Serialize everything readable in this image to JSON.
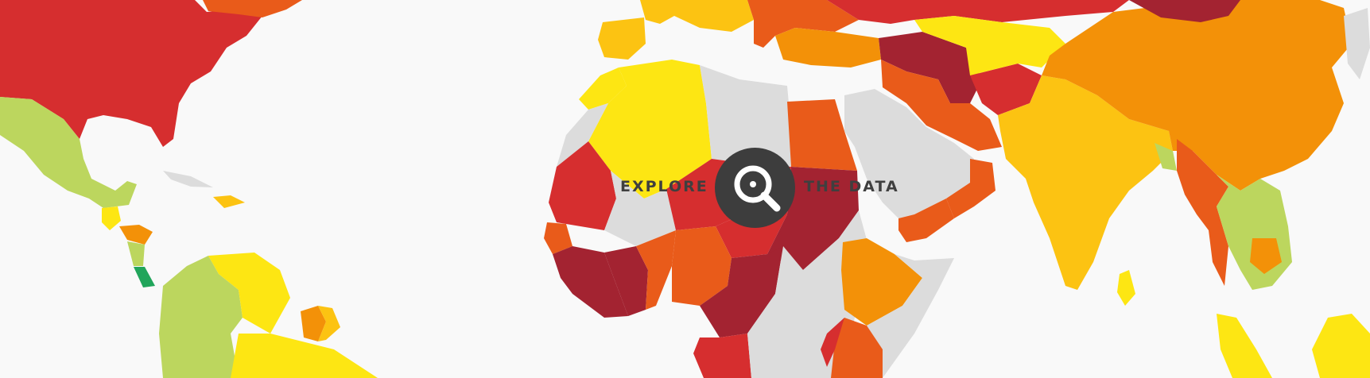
{
  "overlay": {
    "left_text": "EXPLORE",
    "right_text": "THE DATA",
    "button_icon": "magnifier-icon"
  },
  "colors": {
    "background": "#f9f9f9",
    "no_data": "#dcdcdc",
    "scale": [
      "#21a55b",
      "#bcd65e",
      "#fde613",
      "#fcc312",
      "#f39108",
      "#e95b1a",
      "#d62e2f",
      "#a32331"
    ],
    "button": "#3d3d3d",
    "label": "#3f3f3f"
  },
  "regions": [
    {
      "name": "north-america-north",
      "fill": "#d62e2f"
    },
    {
      "name": "canada-islands",
      "fill": "#e95b1a"
    },
    {
      "name": "mexico",
      "fill": "#bcd65e"
    },
    {
      "name": "guatemala",
      "fill": "#fde613"
    },
    {
      "name": "honduras",
      "fill": "#f39108"
    },
    {
      "name": "nicaragua",
      "fill": "#bcd65e"
    },
    {
      "name": "costa-rica",
      "fill": "#21a55b"
    },
    {
      "name": "cuba",
      "fill": "#dcdcdc"
    },
    {
      "name": "hispaniola",
      "fill": "#fcc312"
    },
    {
      "name": "colombia",
      "fill": "#bcd65e"
    },
    {
      "name": "venezuela",
      "fill": "#fde613"
    },
    {
      "name": "guyana",
      "fill": "#f39108"
    },
    {
      "name": "suriname",
      "fill": "#fcc312"
    },
    {
      "name": "south-america-lower",
      "fill": "#fde613"
    },
    {
      "name": "iberia",
      "fill": "#fcc312"
    },
    {
      "name": "europe-west",
      "fill": "#fcc312"
    },
    {
      "name": "europe-east",
      "fill": "#e95b1a"
    },
    {
      "name": "russia",
      "fill": "#d62e2f"
    },
    {
      "name": "morocco",
      "fill": "#fde613"
    },
    {
      "name": "algeria",
      "fill": "#fde613"
    },
    {
      "name": "libya",
      "fill": "#dcdcdc"
    },
    {
      "name": "egypt",
      "fill": "#e95b1a"
    },
    {
      "name": "western-sahara",
      "fill": "#dcdcdc"
    },
    {
      "name": "mauritania",
      "fill": "#d62e2f"
    },
    {
      "name": "mali",
      "fill": "#dcdcdc"
    },
    {
      "name": "niger",
      "fill": "#d62e2f"
    },
    {
      "name": "chad",
      "fill": "#d62e2f"
    },
    {
      "name": "sudan",
      "fill": "#a32331"
    },
    {
      "name": "senegal",
      "fill": "#e95b1a"
    },
    {
      "name": "guinea",
      "fill": "#a32331"
    },
    {
      "name": "ivory-coast",
      "fill": "#a32331"
    },
    {
      "name": "ghana",
      "fill": "#e95b1a"
    },
    {
      "name": "nigeria",
      "fill": "#e95b1a"
    },
    {
      "name": "cameroon",
      "fill": "#a32331"
    },
    {
      "name": "gabon-congo",
      "fill": "#d62e2f"
    },
    {
      "name": "central-africa",
      "fill": "#dcdcdc"
    },
    {
      "name": "ethiopia",
      "fill": "#f39108"
    },
    {
      "name": "horn-of-africa",
      "fill": "#dcdcdc"
    },
    {
      "name": "east-africa",
      "fill": "#e95b1a"
    },
    {
      "name": "east-africa-small",
      "fill": "#d62e2f"
    },
    {
      "name": "arabian-peninsula",
      "fill": "#dcdcdc"
    },
    {
      "name": "yemen",
      "fill": "#e95b1a"
    },
    {
      "name": "oman",
      "fill": "#e95b1a"
    },
    {
      "name": "turkey",
      "fill": "#f39108"
    },
    {
      "name": "caucasus",
      "fill": "#a32331"
    },
    {
      "name": "iran",
      "fill": "#e95b1a"
    },
    {
      "name": "afghanistan",
      "fill": "#d62e2f"
    },
    {
      "name": "central-asia",
      "fill": "#fde613"
    },
    {
      "name": "pakistan-india",
      "fill": "#fcc312"
    },
    {
      "name": "sri-lanka",
      "fill": "#fde613"
    },
    {
      "name": "china",
      "fill": "#f39108"
    },
    {
      "name": "mongolia",
      "fill": "#a32331"
    },
    {
      "name": "bangladesh",
      "fill": "#bcd65e"
    },
    {
      "name": "myanmar",
      "fill": "#e95b1a"
    },
    {
      "name": "indochina",
      "fill": "#bcd65e"
    },
    {
      "name": "cambodia",
      "fill": "#f39108"
    },
    {
      "name": "malaysia",
      "fill": "#fde613"
    },
    {
      "name": "philippines",
      "fill": "#fde613"
    },
    {
      "name": "korea-japan",
      "fill": "#dcdcdc"
    }
  ]
}
